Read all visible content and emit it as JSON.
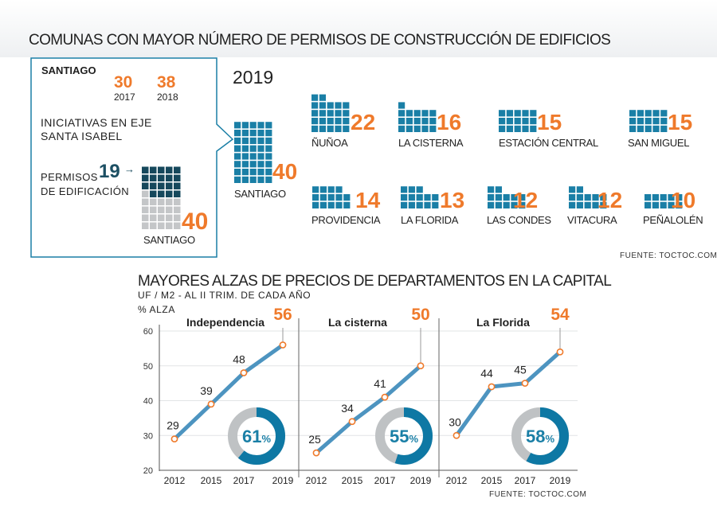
{
  "colors": {
    "teal": "#1a7fa6",
    "dark": "#16485c",
    "gray": "#c4c6c8",
    "orange": "#ef7a2b",
    "line": "#4d94c0",
    "ring_gray": "#bfc2c4",
    "ring_blue": "#0e78a4"
  },
  "permits": {
    "title": "COMUNAS CON MAYOR NÚMERO DE PERMISOS DE CONSTRUCCIÓN DE EDIFICIOS",
    "year": "2019",
    "source": "FUENTE: TOCTOC.COM",
    "callout": {
      "name": "SANTIAGO",
      "v2017": "30",
      "y2017": "2017",
      "v2018": "38",
      "y2018": "2018",
      "initiative_line1": "INICIATIVAS EN EJE",
      "initiative_line2": "SANTA ISABEL",
      "permisos_line1": "PERMISOS",
      "permisos_line2": "DE EDIFICACIÓN",
      "permisos_value": 19,
      "total": 40,
      "commune_label": "SANTIAGO"
    },
    "communes": [
      {
        "name": "SANTIAGO",
        "value": 40
      },
      {
        "name": "ÑUÑOA",
        "value": 22
      },
      {
        "name": "LA CISTERNA",
        "value": 16
      },
      {
        "name": "ESTACIÓN CENTRAL",
        "value": 15
      },
      {
        "name": "SAN MIGUEL",
        "value": 15
      },
      {
        "name": "PROVIDENCIA",
        "value": 14
      },
      {
        "name": "LA FLORIDA",
        "value": 13
      },
      {
        "name": "LAS CONDES",
        "value": 12
      },
      {
        "name": "VITACURA",
        "value": 12
      },
      {
        "name": "PEÑALOLÉN",
        "value": 10
      }
    ]
  },
  "chart_data": {
    "type": "line",
    "title": "MAYORES ALZAS DE PRECIOS DE DEPARTAMENTOS EN LA CAPITAL",
    "subtitle": "UF / M2 - AL II TRIM. DE CADA AÑO",
    "ylabel": "% ALZA",
    "ylim": [
      20,
      60
    ],
    "yticks": [
      20,
      30,
      40,
      50,
      60
    ],
    "x": [
      "2012",
      "2015",
      "2017",
      "2019"
    ],
    "series": [
      {
        "name": "Independencia",
        "values": [
          29,
          39,
          48,
          56
        ],
        "labels": [
          "29",
          "39",
          "48",
          "56"
        ],
        "alza": 61,
        "alza_num": "61",
        "alza_pct": "%"
      },
      {
        "name": "La cisterna",
        "values": [
          25,
          34,
          41,
          50
        ],
        "labels": [
          "25",
          "34",
          "41",
          "50"
        ],
        "alza": 55,
        "alza_num": "55",
        "alza_pct": "%"
      },
      {
        "name": "La Florida",
        "values": [
          30,
          44,
          45,
          54
        ],
        "labels": [
          "30",
          "44",
          "45",
          "54"
        ],
        "alza": 58,
        "alza_num": "58",
        "alza_pct": "%"
      }
    ],
    "source": "FUENTE: TOCTOC.COM"
  }
}
